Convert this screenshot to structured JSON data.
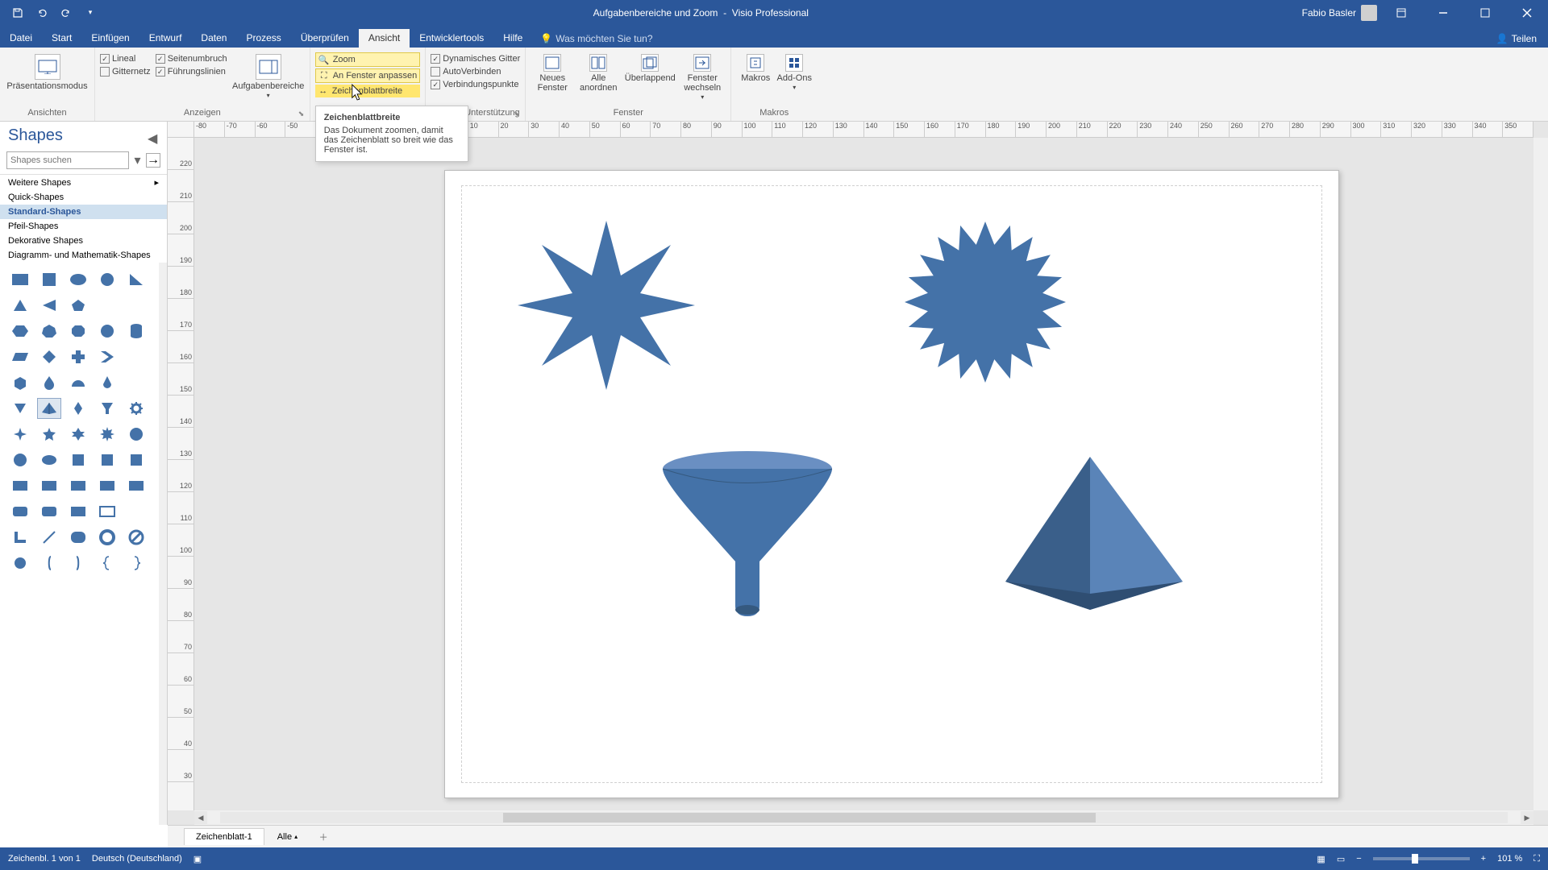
{
  "colors": {
    "title_bg": "#2b579a",
    "ribbon_bg": "#f3f3f3",
    "shape_fill": "#4472a8",
    "highlight": "#fff3b0",
    "highlight_border": "#e0c94a",
    "hover_highlight": "#ffe66f"
  },
  "title": {
    "document": "Aufgabenbereiche und Zoom",
    "app": "Visio Professional",
    "user": "Fabio Basler"
  },
  "menu": {
    "tabs": [
      "Datei",
      "Start",
      "Einfügen",
      "Entwurf",
      "Daten",
      "Prozess",
      "Überprüfen",
      "Ansicht",
      "Entwicklertools",
      "Hilfe"
    ],
    "active_index": 7,
    "tellme": "Was möchten Sie tun?",
    "share": "Teilen"
  },
  "ribbon": {
    "ansichten": {
      "presentation": "Präsentationsmodus",
      "label": "Ansichten"
    },
    "anzeigen": {
      "lineal": "Lineal",
      "seitenumbruch": "Seitenumbruch",
      "gitternetz": "Gitternetz",
      "fuehrungslinien": "Führungslinien",
      "aufgabenbereiche": "Aufgabenbereiche",
      "label": "Anzeigen"
    },
    "zoom": {
      "zoom": "Zoom",
      "fit_window": "An Fenster anpassen",
      "page_width": "Zeichenblattbreite",
      "label": "Zoom"
    },
    "visuell": {
      "dyn_grid": "Dynamisches Gitter",
      "autoconnect": "AutoVerbinden",
      "conn_points": "Verbindungspunkte",
      "label": "Visuelle Unterstützung"
    },
    "fenster": {
      "new": "Neues Fenster",
      "arrange": "Alle anordnen",
      "overlap": "Überlappend",
      "switch": "Fenster wechseln",
      "label": "Fenster"
    },
    "makros": {
      "makros": "Makros",
      "addons": "Add-Ons",
      "label": "Makros"
    }
  },
  "tooltip": {
    "title": "Zeichenblattbreite",
    "body": "Das Dokument zoomen, damit das Zeichenblatt so breit wie das Fenster ist."
  },
  "shapes_panel": {
    "title": "Shapes",
    "search_placeholder": "Shapes suchen",
    "stencils": [
      "Weitere Shapes",
      "Quick-Shapes",
      "Standard-Shapes",
      "Pfeil-Shapes",
      "Dekorative Shapes",
      "Diagramm- und Mathematik-Shapes"
    ],
    "selected_index": 2
  },
  "ruler": {
    "h_ticks": [
      "-80",
      "-50",
      "-20",
      "10",
      "40",
      "70",
      "-40",
      "-10",
      "20",
      "50",
      "80",
      "110",
      "140",
      "170",
      "200",
      "230",
      "260",
      "290",
      "320",
      "350"
    ],
    "h_labels": [
      "-80",
      "-70",
      "-60",
      "-50",
      "-40",
      "-30",
      "-20",
      "-10",
      "0",
      "10",
      "20",
      "30",
      "40",
      "50",
      "60",
      "70",
      "80",
      "90",
      "100",
      "110",
      "120",
      "130",
      "140",
      "150",
      "160",
      "170",
      "180",
      "190",
      "200",
      "210",
      "220",
      "230",
      "240",
      "250",
      "260",
      "270",
      "280",
      "290",
      "300",
      "310",
      "320",
      "330",
      "340",
      "350"
    ],
    "v_labels": [
      "220",
      "210",
      "200",
      "190",
      "180",
      "170",
      "160",
      "150",
      "140",
      "130",
      "120",
      "110",
      "100",
      "90",
      "80",
      "70",
      "60",
      "50",
      "40",
      "30"
    ]
  },
  "sheet": {
    "tab1": "Zeichenblatt-1",
    "all": "Alle"
  },
  "status": {
    "left1": "Zeichenbl. 1 von 1",
    "left2": "Deutsch (Deutschland)",
    "zoom": "101 %"
  },
  "hscroll": {
    "thumb_left_pct": 22,
    "thumb_width_pct": 46
  }
}
